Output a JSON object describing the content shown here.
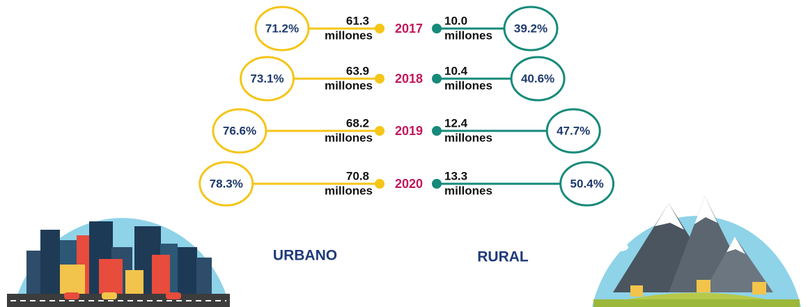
{
  "rows": [
    {
      "year": "2017",
      "urban": {
        "amount": "61.3",
        "unit": "millones",
        "share": "71.2%"
      },
      "rural": {
        "amount": "10.0",
        "unit": "millones",
        "share": "39.2%"
      }
    },
    {
      "year": "2018",
      "urban": {
        "amount": "63.9",
        "unit": "millones",
        "share": "73.1%"
      },
      "rural": {
        "amount": "10.4",
        "unit": "millones",
        "share": "40.6%"
      }
    },
    {
      "year": "2019",
      "urban": {
        "amount": "68.2",
        "unit": "millones",
        "share": "76.6%"
      },
      "rural": {
        "amount": "12.4",
        "unit": "millones",
        "share": "47.7%"
      }
    },
    {
      "year": "2020",
      "urban": {
        "amount": "70.8",
        "unit": "millones",
        "share": "78.3%"
      },
      "rural": {
        "amount": "13.3",
        "unit": "millones",
        "share": "50.4%"
      }
    }
  ],
  "labels": {
    "urban": "URBANO",
    "rural": "RURAL"
  }
}
